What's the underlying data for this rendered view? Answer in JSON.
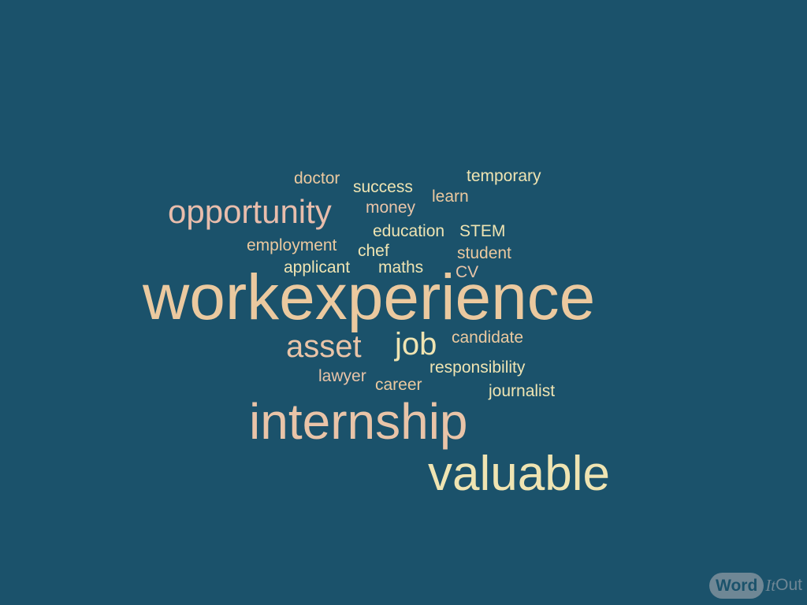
{
  "background_color": "#1b526b",
  "words": [
    {
      "text": "workexperience",
      "color": "#ebc99f"
    },
    {
      "text": "internship",
      "color": "#e9c4a8"
    },
    {
      "text": "valuable",
      "color": "#efe4b2"
    },
    {
      "text": "opportunity",
      "color": "#e8bdac"
    },
    {
      "text": "asset",
      "color": "#e9c4a8"
    },
    {
      "text": "job",
      "color": "#efe4b2"
    },
    {
      "text": "doctor",
      "color": "#ebc99f"
    },
    {
      "text": "success",
      "color": "#efe4b2"
    },
    {
      "text": "temporary",
      "color": "#efe4b2"
    },
    {
      "text": "learn",
      "color": "#ebc99f"
    },
    {
      "text": "money",
      "color": "#e9c4a8"
    },
    {
      "text": "education",
      "color": "#efe4b2"
    },
    {
      "text": "STEM",
      "color": "#efe4b2"
    },
    {
      "text": "employment",
      "color": "#ebc99f"
    },
    {
      "text": "chef",
      "color": "#efe4b2"
    },
    {
      "text": "student",
      "color": "#ebc99f"
    },
    {
      "text": "applicant",
      "color": "#efe4b2"
    },
    {
      "text": "maths",
      "color": "#efe4b2"
    },
    {
      "text": "CV",
      "color": "#e9c4a8"
    },
    {
      "text": "candidate",
      "color": "#ebc99f"
    },
    {
      "text": "responsibility",
      "color": "#efe4b2"
    },
    {
      "text": "lawyer",
      "color": "#e9c4a8"
    },
    {
      "text": "career",
      "color": "#ebc99f"
    },
    {
      "text": "journalist",
      "color": "#efe4b2"
    }
  ],
  "logo": {
    "word": "Word",
    "it": "It",
    "out": "Out"
  }
}
